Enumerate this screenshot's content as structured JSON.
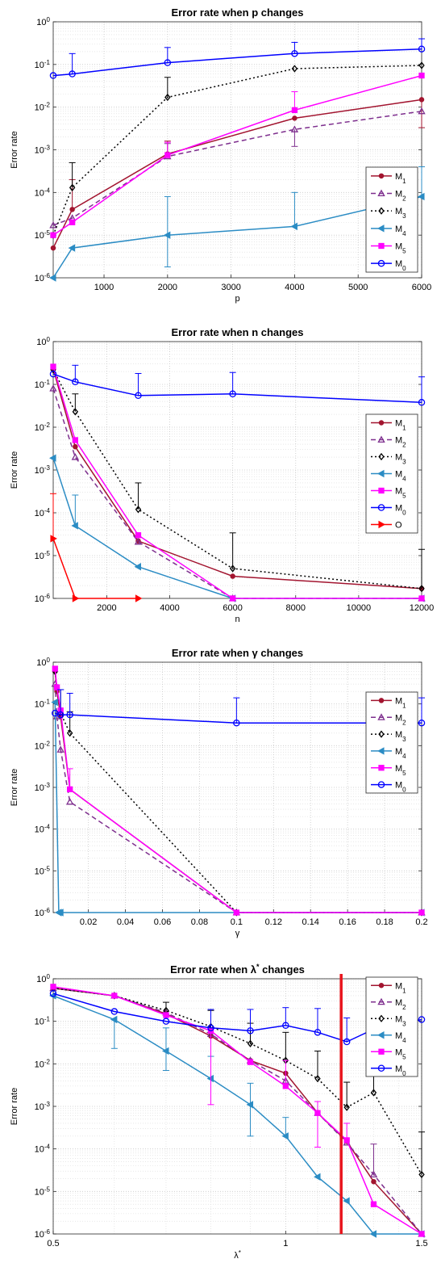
{
  "chart_data": [
    {
      "type": "line",
      "title": "Error rate when p changes",
      "xlabel": "p",
      "ylabel": "Error rate",
      "xscale": "linear",
      "yscale": "log",
      "xlim": [
        200,
        6000
      ],
      "ylim": [
        1e-06,
        1
      ],
      "xticks": [
        1000,
        2000,
        3000,
        4000,
        5000,
        6000
      ],
      "grid": true,
      "legend_position": "lower-right",
      "series": [
        {
          "name": "M1",
          "color": "#a2142f",
          "dash": "",
          "marker": "dot",
          "x": [
            200,
            500,
            2000,
            4000,
            6000
          ],
          "y": [
            5e-06,
            4e-05,
            0.0008,
            0.0055,
            0.015
          ],
          "err_hi": [
            null,
            0.0002,
            0.0016,
            null,
            null
          ],
          "err_lo": [
            null,
            null,
            null,
            null,
            0.0033
          ]
        },
        {
          "name": "M2",
          "color": "#7e2f8e",
          "dash": "6,4",
          "marker": "triangle",
          "x": [
            200,
            500,
            2000,
            4000,
            6000
          ],
          "y": [
            1.7e-05,
            2.5e-05,
            0.0007,
            0.003,
            0.008
          ],
          "err_hi": [
            null,
            null,
            0.0014,
            null,
            null
          ],
          "err_lo": [
            null,
            null,
            null,
            0.0012,
            null
          ]
        },
        {
          "name": "M3",
          "color": "#000000",
          "dash": "2,3",
          "marker": "diamond",
          "x": [
            200,
            500,
            2000,
            4000,
            6000
          ],
          "y": [
            1e-05,
            0.00013,
            0.017,
            0.08,
            0.095
          ],
          "err_hi": [
            null,
            0.0005,
            0.05,
            null,
            null
          ],
          "err_lo": [
            null,
            null,
            null,
            null,
            null
          ]
        },
        {
          "name": "M4",
          "color": "#2b8cc4",
          "dash": "",
          "marker": "triangle-left",
          "x": [
            200,
            500,
            2000,
            4000,
            6000
          ],
          "y": [
            1e-06,
            5e-06,
            1e-05,
            1.6e-05,
            8e-05
          ],
          "err_hi": [
            null,
            null,
            8e-05,
            0.0001,
            0.0004
          ],
          "err_lo": [
            null,
            null,
            1.8e-06,
            null,
            null
          ]
        },
        {
          "name": "M5",
          "color": "#ff00ff",
          "dash": "",
          "marker": "square",
          "x": [
            200,
            500,
            2000,
            4000,
            6000
          ],
          "y": [
            1e-05,
            2e-05,
            0.00075,
            0.0085,
            0.055
          ],
          "err_hi": [
            null,
            null,
            0.0015,
            0.023,
            null
          ],
          "err_lo": [
            null,
            null,
            null,
            null,
            null
          ]
        },
        {
          "name": "M0",
          "color": "#0000ff",
          "dash": "",
          "marker": "circle",
          "x": [
            200,
            500,
            2000,
            4000,
            6000
          ],
          "y": [
            0.055,
            0.06,
            0.11,
            0.18,
            0.23
          ],
          "err_hi": [
            null,
            0.18,
            0.25,
            0.33,
            0.4
          ],
          "err_lo": [
            null,
            null,
            null,
            null,
            null
          ]
        }
      ]
    },
    {
      "type": "line",
      "title": "Error rate when n changes",
      "xlabel": "n",
      "ylabel": "Error rate",
      "xscale": "linear",
      "yscale": "log",
      "xlim": [
        300,
        12000
      ],
      "ylim": [
        1e-06,
        1
      ],
      "xticks": [
        2000,
        4000,
        6000,
        8000,
        10000,
        12000
      ],
      "grid": true,
      "legend_position": "right",
      "series": [
        {
          "name": "M1",
          "color": "#a2142f",
          "dash": "",
          "marker": "dot",
          "x": [
            300,
            1000,
            3000,
            6000,
            12000
          ],
          "y": [
            0.23,
            0.0035,
            2.2e-05,
            3.3e-06,
            1.7e-06
          ],
          "err_hi": [
            null,
            null,
            null,
            null,
            null
          ],
          "err_lo": [
            null,
            null,
            null,
            null,
            null
          ]
        },
        {
          "name": "M2",
          "color": "#7e2f8e",
          "dash": "6,4",
          "marker": "triangle",
          "x": [
            300,
            1000,
            3000,
            6000,
            12000
          ],
          "y": [
            0.08,
            0.002,
            2.1e-05,
            1e-06,
            1e-06
          ],
          "err_hi": [
            null,
            null,
            null,
            null,
            null
          ],
          "err_lo": [
            null,
            null,
            null,
            null,
            null
          ]
        },
        {
          "name": "M3",
          "color": "#000000",
          "dash": "2,3",
          "marker": "diamond",
          "x": [
            300,
            1000,
            3000,
            6000,
            12000
          ],
          "y": [
            0.22,
            0.023,
            0.00012,
            5e-06,
            1.7e-06
          ],
          "err_hi": [
            null,
            0.06,
            0.0005,
            3.4e-05,
            1.4e-05
          ],
          "err_lo": [
            null,
            null,
            null,
            null,
            null
          ]
        },
        {
          "name": "M4",
          "color": "#2b8cc4",
          "dash": "",
          "marker": "triangle-left",
          "x": [
            300,
            1000,
            3000,
            6000,
            12000
          ],
          "y": [
            0.0019,
            5e-05,
            5.5e-06,
            1e-06,
            1e-06
          ],
          "err_hi": [
            null,
            null,
            null,
            null,
            null
          ],
          "err_lo": [
            null,
            0.00026,
            null,
            null,
            null
          ]
        },
        {
          "name": "M5",
          "color": "#ff00ff",
          "dash": "",
          "marker": "square",
          "x": [
            300,
            1000,
            3000,
            6000,
            12000
          ],
          "y": [
            0.26,
            0.005,
            3e-05,
            1e-06,
            1e-06
          ],
          "err_hi": [
            null,
            null,
            null,
            null,
            null
          ],
          "err_lo": [
            null,
            null,
            null,
            null,
            null
          ]
        },
        {
          "name": "M0",
          "color": "#0000ff",
          "dash": "",
          "marker": "circle",
          "x": [
            300,
            1000,
            3000,
            6000,
            12000
          ],
          "y": [
            0.175,
            0.115,
            0.055,
            0.06,
            0.038
          ],
          "err_hi": [
            null,
            0.28,
            0.18,
            0.19,
            0.15
          ],
          "err_lo": [
            null,
            null,
            null,
            null,
            null
          ]
        },
        {
          "name": "O",
          "color": "#ff0000",
          "dash": "",
          "marker": "triangle-right",
          "x": [
            300,
            1000,
            3000
          ],
          "y": [
            2.5e-05,
            1e-06,
            1e-06
          ],
          "err_hi": [
            0.00028,
            null,
            null
          ],
          "err_lo": [
            null,
            null,
            null
          ]
        }
      ]
    },
    {
      "type": "line",
      "title": "Error rate when γ changes",
      "xlabel": "γ",
      "ylabel": "Error rate",
      "xscale": "linear",
      "yscale": "log",
      "xlim": [
        0.001,
        0.2
      ],
      "ylim": [
        1e-06,
        1
      ],
      "xticks": [
        0.02,
        0.04,
        0.06,
        0.08,
        0.1,
        0.12,
        0.14,
        0.16,
        0.18,
        0.2
      ],
      "grid": true,
      "legend_position": "right",
      "series": [
        {
          "name": "M1",
          "color": "#a2142f",
          "dash": "",
          "marker": "dot",
          "x": [
            0.002,
            0.003,
            0.005,
            0.01,
            0.1,
            0.2
          ],
          "y": [
            0.6,
            0.2,
            0.05,
            0.0009,
            1e-06,
            1e-06
          ],
          "err_hi": [
            null,
            null,
            null,
            null,
            null,
            null
          ],
          "err_lo": [
            null,
            null,
            null,
            null,
            null,
            null
          ]
        },
        {
          "name": "M2",
          "color": "#7e2f8e",
          "dash": "6,4",
          "marker": "triangle",
          "x": [
            0.002,
            0.003,
            0.005,
            0.01,
            0.1,
            0.2
          ],
          "y": [
            0.3,
            0.05,
            0.008,
            0.00045,
            1e-06,
            1e-06
          ],
          "err_hi": [
            null,
            null,
            null,
            null,
            null,
            null
          ],
          "err_lo": [
            null,
            null,
            null,
            null,
            null,
            null
          ]
        },
        {
          "name": "M3",
          "color": "#000000",
          "dash": "2,3",
          "marker": "diamond",
          "x": [
            0.002,
            0.003,
            0.005,
            0.01,
            0.1,
            0.2
          ],
          "y": [
            0.6,
            0.25,
            0.06,
            0.02,
            1e-06,
            1e-06
          ],
          "err_hi": [
            null,
            null,
            0.22,
            0.065,
            null,
            null
          ],
          "err_lo": [
            null,
            null,
            null,
            null,
            null,
            null
          ]
        },
        {
          "name": "M4",
          "color": "#2b8cc4",
          "dash": "",
          "marker": "triangle-left",
          "x": [
            0.002,
            0.004,
            0.005,
            0.2
          ],
          "y": [
            0.11,
            1e-06,
            1e-06,
            1e-06
          ],
          "err_hi": [
            null,
            null,
            null,
            null
          ],
          "err_lo": [
            null,
            null,
            null,
            null
          ]
        },
        {
          "name": "M5",
          "color": "#ff00ff",
          "dash": "",
          "marker": "square",
          "x": [
            0.002,
            0.003,
            0.005,
            0.01,
            0.1,
            0.2
          ],
          "y": [
            0.7,
            0.25,
            0.07,
            0.0009,
            1e-06,
            1e-06
          ],
          "err_hi": [
            null,
            null,
            null,
            0.0028,
            null,
            null
          ],
          "err_lo": [
            null,
            null,
            null,
            null,
            null,
            null
          ]
        },
        {
          "name": "M0",
          "color": "#0000ff",
          "dash": "",
          "marker": "circle",
          "x": [
            0.002,
            0.005,
            0.01,
            0.1,
            0.2
          ],
          "y": [
            0.06,
            0.055,
            0.055,
            0.035,
            0.035
          ],
          "err_hi": [
            null,
            0.22,
            0.18,
            0.14,
            0.14
          ],
          "err_lo": [
            null,
            null,
            null,
            null,
            null
          ]
        }
      ]
    },
    {
      "type": "line",
      "title": "Error rate when λ* changes",
      "xlabel": "λ*",
      "ylabel": "Error rate",
      "xscale": "log",
      "yscale": "log",
      "xlim": [
        0.5,
        1.5
      ],
      "ylim": [
        1e-06,
        1
      ],
      "xticks": [
        0.5,
        1,
        1.5
      ],
      "grid": true,
      "legend_position": "upper-right",
      "vline": {
        "x": 1.18,
        "color": "#e8141c"
      },
      "series": [
        {
          "name": "M1",
          "color": "#a2142f",
          "dash": "",
          "marker": "dot",
          "x": [
            0.5,
            0.6,
            0.7,
            0.8,
            0.9,
            1.0,
            1.1,
            1.2,
            1.3,
            1.5
          ],
          "y": [
            0.6,
            0.4,
            0.15,
            0.045,
            0.012,
            0.006,
            0.0007,
            0.00015,
            1.7e-05,
            1e-06
          ],
          "err_hi": [
            null,
            null,
            null,
            null,
            null,
            null,
            null,
            null,
            null,
            null
          ],
          "err_lo": [
            null,
            null,
            null,
            null,
            null,
            null,
            null,
            null,
            null,
            null
          ]
        },
        {
          "name": "M2",
          "color": "#7e2f8e",
          "dash": "6,4",
          "marker": "triangle",
          "x": [
            0.5,
            0.6,
            0.7,
            0.8,
            0.9,
            1.0,
            1.1,
            1.2,
            1.3,
            1.5
          ],
          "y": [
            0.6,
            0.4,
            0.16,
            0.05,
            0.012,
            0.004,
            0.0007,
            0.00014,
            2.5e-05,
            1e-06
          ],
          "err_hi": [
            null,
            null,
            null,
            null,
            null,
            null,
            null,
            null,
            0.00013,
            null
          ],
          "err_lo": [
            null,
            null,
            null,
            null,
            null,
            null,
            null,
            null,
            null,
            null
          ]
        },
        {
          "name": "M3",
          "color": "#000000",
          "dash": "2,3",
          "marker": "diamond",
          "x": [
            0.5,
            0.6,
            0.7,
            0.8,
            0.9,
            1.0,
            1.1,
            1.2,
            1.3,
            1.5
          ],
          "y": [
            0.6,
            0.4,
            0.18,
            0.075,
            0.03,
            0.012,
            0.0045,
            0.00095,
            0.0021,
            2.5e-05
          ],
          "err_hi": [
            null,
            null,
            0.28,
            0.18,
            0.09,
            0.055,
            0.02,
            0.0037,
            0.025,
            0.00025
          ],
          "err_lo": [
            null,
            null,
            null,
            null,
            null,
            null,
            null,
            null,
            null,
            null
          ]
        },
        {
          "name": "M4",
          "color": "#2b8cc4",
          "dash": "",
          "marker": "triangle-left",
          "x": [
            0.5,
            0.6,
            0.7,
            0.8,
            0.9,
            1.0,
            1.1,
            1.2,
            1.3,
            1.5
          ],
          "y": [
            0.4,
            0.11,
            0.02,
            0.0045,
            0.0011,
            0.0002,
            2.2e-05,
            6e-06,
            1e-06,
            1e-06
          ],
          "err_hi": [
            null,
            null,
            0.07,
            0.015,
            0.0035,
            0.00055,
            null,
            null,
            null,
            null
          ],
          "err_lo": [
            null,
            0.023,
            0.007,
            null,
            0.0002,
            null,
            null,
            null,
            null,
            null
          ]
        },
        {
          "name": "M5",
          "color": "#ff00ff",
          "dash": "",
          "marker": "square",
          "x": [
            0.5,
            0.6,
            0.7,
            0.8,
            0.9,
            1.0,
            1.1,
            1.2,
            1.3,
            1.5
          ],
          "y": [
            0.65,
            0.4,
            0.14,
            0.06,
            0.011,
            0.003,
            0.0007,
            0.00016,
            5e-06,
            1e-06
          ],
          "err_hi": [
            null,
            null,
            null,
            null,
            null,
            0.012,
            0.0013,
            0.0004,
            null,
            null
          ],
          "err_lo": [
            null,
            null,
            null,
            0.0011,
            null,
            null,
            0.00011,
            null,
            null,
            null
          ]
        },
        {
          "name": "M0",
          "color": "#0000ff",
          "dash": "",
          "marker": "circle",
          "x": [
            0.5,
            0.6,
            0.7,
            0.8,
            0.9,
            1.0,
            1.1,
            1.2,
            1.3,
            1.5
          ],
          "y": [
            0.45,
            0.17,
            0.1,
            0.07,
            0.06,
            0.08,
            0.055,
            0.033,
            0.065,
            0.11
          ],
          "err_hi": [
            null,
            null,
            null,
            0.19,
            0.19,
            0.21,
            0.2,
            0.12,
            0.2,
            null
          ],
          "err_lo": [
            null,
            null,
            null,
            null,
            null,
            null,
            null,
            null,
            null,
            null
          ]
        }
      ]
    }
  ]
}
